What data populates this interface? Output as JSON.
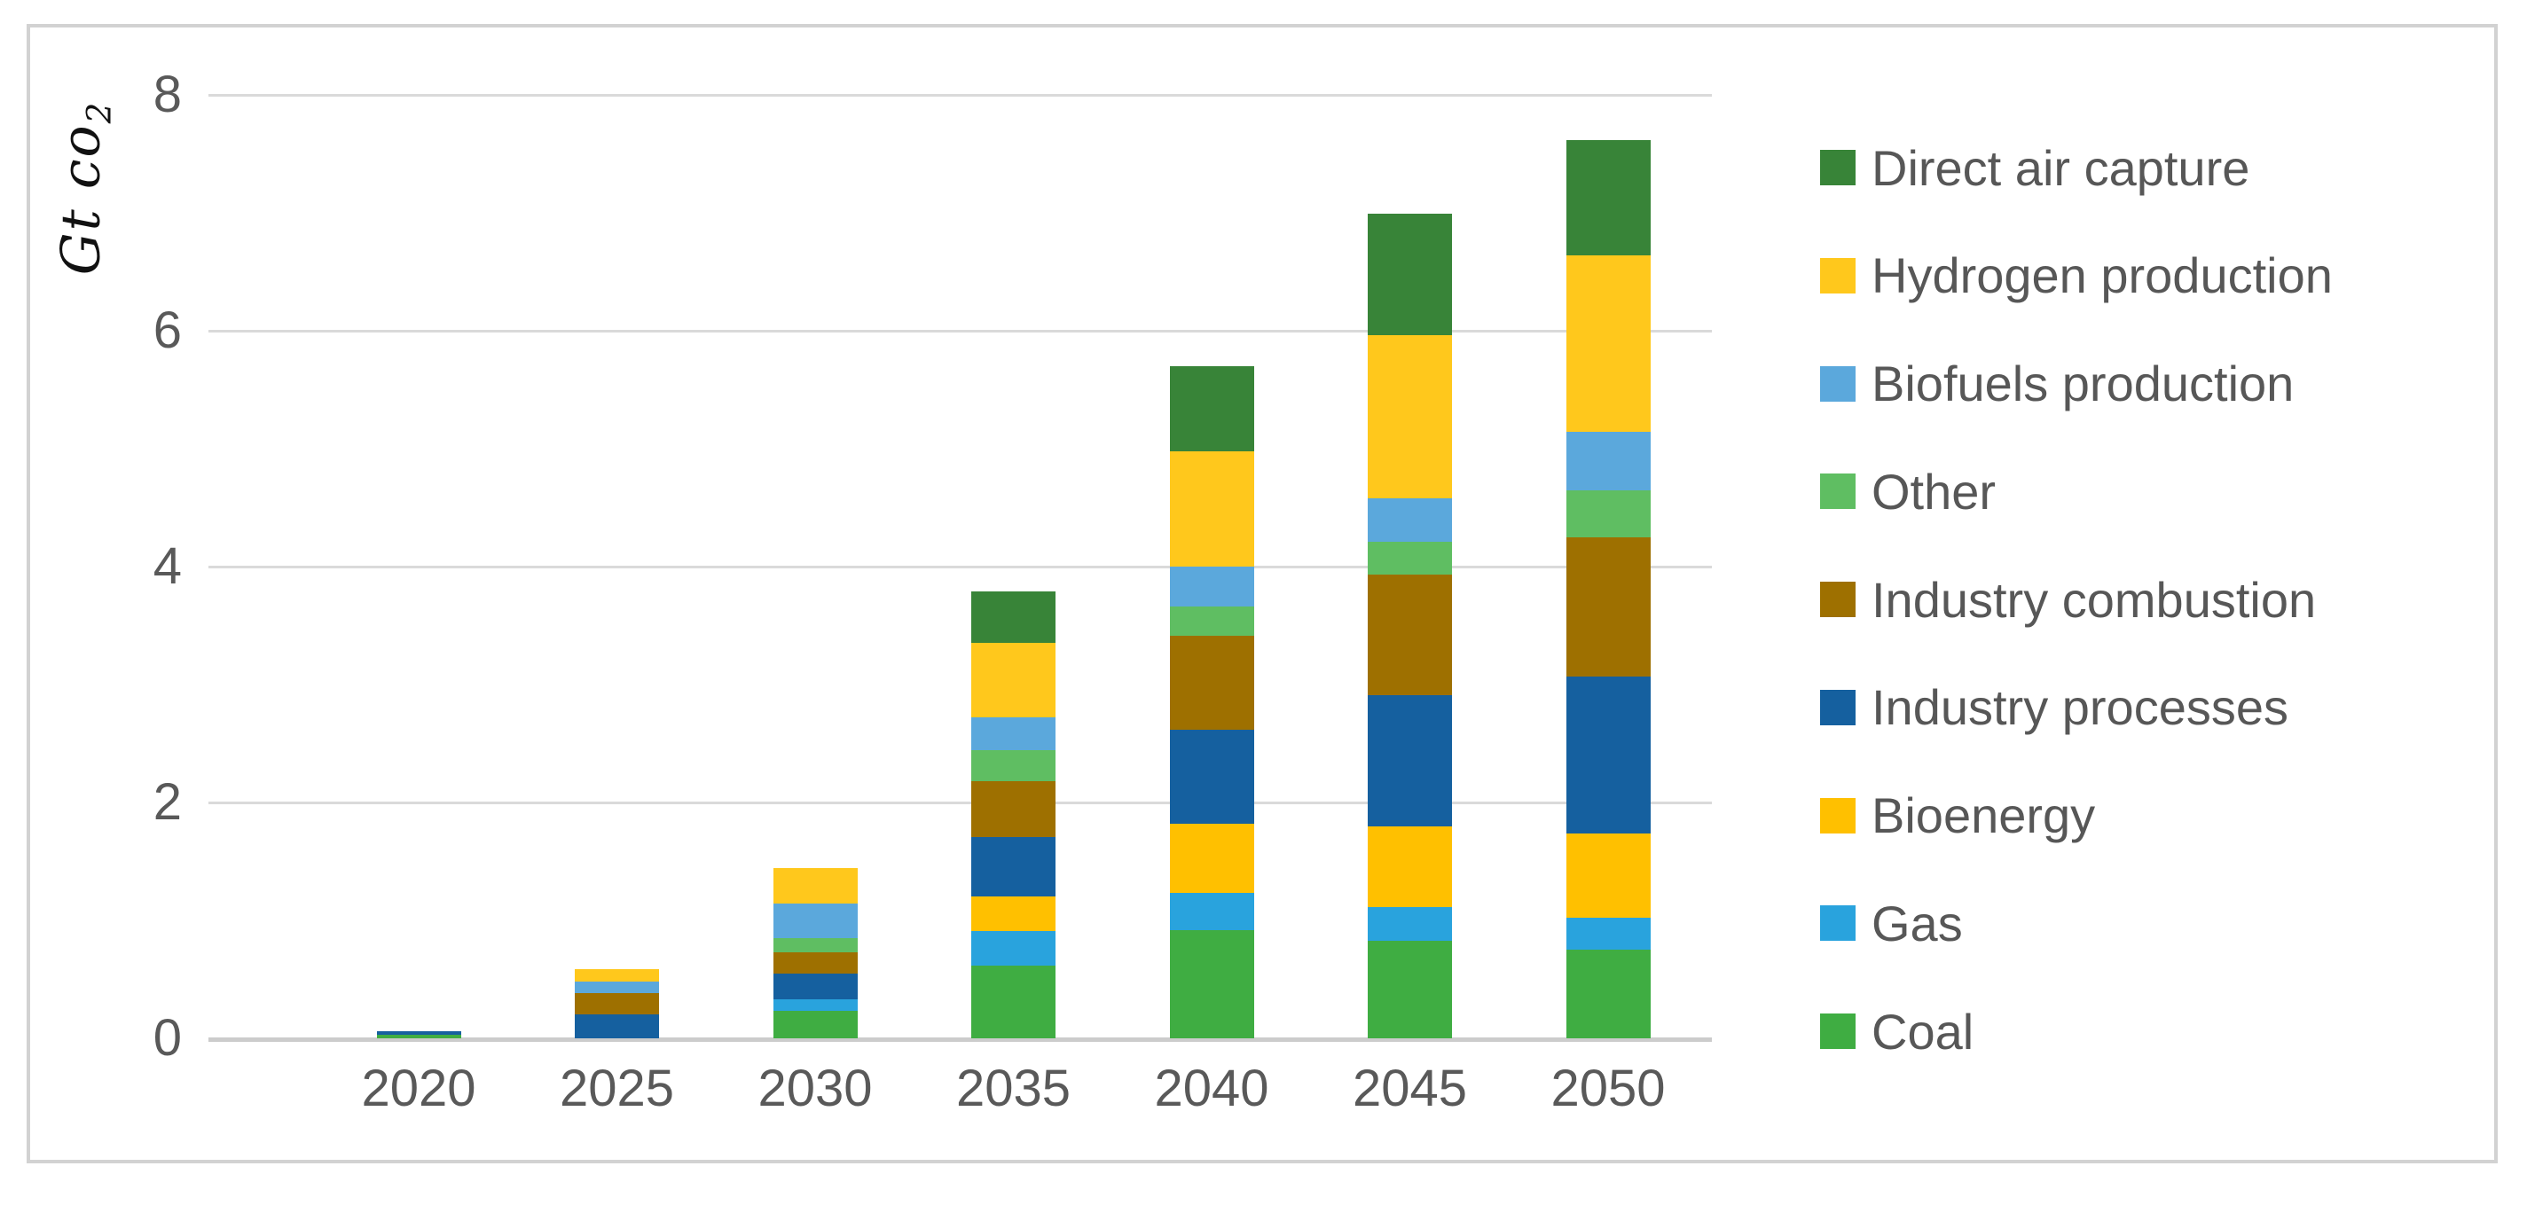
{
  "figure": {
    "background": "#FFFFFF",
    "border_color": "#D2D2D2"
  },
  "chart_data": {
    "type": "bar",
    "stacked": true,
    "title": "",
    "y_axis": {
      "title_main": "Gt co",
      "title_sub": "2",
      "ticks": [
        0,
        2,
        4,
        6,
        8
      ],
      "ylim": [
        0,
        8
      ]
    },
    "x_axis": {
      "categories": [
        "2020",
        "2025",
        "2030",
        "2035",
        "2040",
        "2045",
        "2050"
      ]
    },
    "categories": [
      "2020",
      "2025",
      "2030",
      "2035",
      "2040",
      "2045",
      "2050"
    ],
    "series": [
      {
        "name": "Direct air capture",
        "color": "#388438",
        "values": [
          0,
          0,
          0,
          0.44,
          0.72,
          1.03,
          0.98
        ]
      },
      {
        "name": "Hydrogen production",
        "color": "#FFC81C",
        "values": [
          0,
          0.11,
          0.3,
          0.63,
          0.98,
          1.38,
          1.5
        ]
      },
      {
        "name": "Biofuels production",
        "color": "#5BA8DC",
        "values": [
          0,
          0.1,
          0.29,
          0.28,
          0.34,
          0.37,
          0.49
        ]
      },
      {
        "name": "Other",
        "color": "#5FBE62",
        "values": [
          0,
          0,
          0.12,
          0.26,
          0.25,
          0.28,
          0.4
        ]
      },
      {
        "name": "Industry combustion",
        "color": "#9E7000",
        "values": [
          0,
          0.18,
          0.18,
          0.47,
          0.79,
          1.02,
          1.18
        ]
      },
      {
        "name": "Industry processes",
        "color": "#15609F",
        "values": [
          0.03,
          0.2,
          0.22,
          0.51,
          0.8,
          1.11,
          1.33
        ]
      },
      {
        "name": "Bioenergy",
        "color": "#FFC000",
        "values": [
          0,
          0,
          0,
          0.29,
          0.59,
          0.69,
          0.72
        ]
      },
      {
        "name": "Gas",
        "color": "#29A3DD",
        "values": [
          0,
          0,
          0.1,
          0.29,
          0.31,
          0.28,
          0.27
        ]
      },
      {
        "name": "Coal",
        "color": "#3FAD42",
        "values": [
          0.03,
          0,
          0.23,
          0.62,
          0.92,
          0.83,
          0.75
        ]
      }
    ],
    "stack_order_bottom_to_top": [
      "Coal",
      "Gas",
      "Bioenergy",
      "Industry processes",
      "Industry combustion",
      "Other",
      "Biofuels production",
      "Hydrogen production",
      "Direct air capture"
    ],
    "totals_by_year": [
      0.06,
      0.59,
      1.44,
      3.79,
      5.7,
      6.99,
      7.62
    ],
    "legend_position": "right",
    "grid": "horizontal",
    "gridline_color": "#DADADA",
    "axis_text_color": "#595959"
  }
}
